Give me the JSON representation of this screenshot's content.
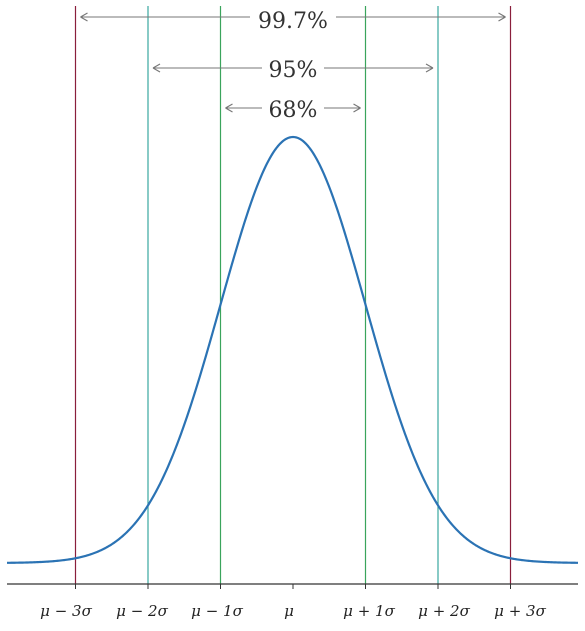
{
  "tick_labels": [
    "μ − 3σ",
    "μ − 2σ",
    "μ − 1σ",
    "μ",
    "μ + 1σ",
    "μ + 2σ",
    "μ + 3σ"
  ],
  "ranges": [
    {
      "label": "99.7%",
      "sigma": 3
    },
    {
      "label": "95%",
      "sigma": 2
    },
    {
      "label": "68%",
      "sigma": 1
    }
  ],
  "colors": {
    "curve": "#2b73b4",
    "line_1sigma": "#3aa45c",
    "line_2sigma": "#3aa8a0",
    "line_3sigma": "#8a1f3c",
    "arrow": "#777777",
    "axis": "#333333"
  }
}
